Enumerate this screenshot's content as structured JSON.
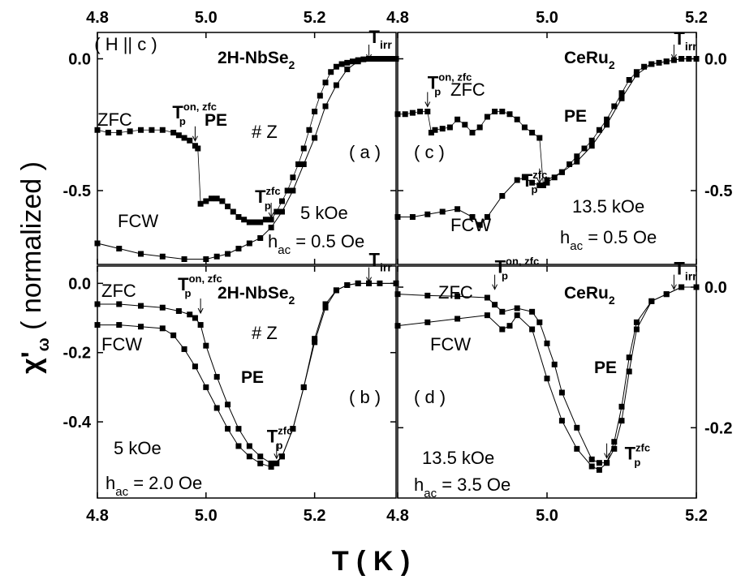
{
  "chart_data": [
    {
      "id": "a",
      "type": "scatter",
      "panel_label": "( a )",
      "sample": "2H-NbSe",
      "sample_sub": "2",
      "orientation": "( H || c )",
      "crystal": "# Z",
      "region": "PE",
      "field": "5 kOe",
      "hac_label": "h",
      "hac_sub": "ac",
      "hac_value": " = 0.5 Oe",
      "xlim": [
        4.8,
        5.35
      ],
      "ylim": [
        -0.78,
        0.1
      ],
      "xticks": [
        "4.8",
        "5.0",
        "5.2"
      ],
      "xtick_values": [
        4.8,
        5.0,
        5.2
      ],
      "yticks": [
        "0.0",
        "-0.5"
      ],
      "ytick_values": [
        0.0,
        -0.5
      ],
      "markers": [
        {
          "base": "T",
          "sup": "on, zfc",
          "sub": "p",
          "x": 4.98,
          "y": -0.33
        },
        {
          "base": "T",
          "sup": "zfc",
          "sub": "p",
          "x": 5.12,
          "y": -0.62
        },
        {
          "base": "T",
          "sub": "irr",
          "x": 5.3,
          "y": -0.02
        }
      ],
      "series": [
        {
          "name": "ZFC",
          "line": false,
          "x": [
            4.8,
            4.82,
            4.84,
            4.86,
            4.88,
            4.9,
            4.92,
            4.94,
            4.95,
            4.96,
            4.97,
            4.98,
            4.985,
            4.99,
            5.0,
            5.01,
            5.02,
            5.03,
            5.04,
            5.05,
            5.06,
            5.07,
            5.08,
            5.09,
            5.1,
            5.11,
            5.12,
            5.13,
            5.14,
            5.15,
            5.16,
            5.17,
            5.18,
            5.19,
            5.2,
            5.21,
            5.22,
            5.23,
            5.24,
            5.25,
            5.26,
            5.27,
            5.28,
            5.29,
            5.3,
            5.31,
            5.32,
            5.33,
            5.34,
            5.35
          ],
          "y": [
            -0.27,
            -0.28,
            -0.28,
            -0.275,
            -0.27,
            -0.27,
            -0.27,
            -0.28,
            -0.29,
            -0.3,
            -0.31,
            -0.33,
            -0.34,
            -0.55,
            -0.54,
            -0.53,
            -0.53,
            -0.54,
            -0.56,
            -0.58,
            -0.6,
            -0.61,
            -0.62,
            -0.62,
            -0.62,
            -0.61,
            -0.61,
            -0.58,
            -0.54,
            -0.5,
            -0.45,
            -0.4,
            -0.34,
            -0.27,
            -0.2,
            -0.14,
            -0.09,
            -0.05,
            -0.03,
            -0.02,
            -0.015,
            -0.01,
            -0.005,
            -0.002,
            0.0,
            0.0,
            0.0,
            0.0,
            0.0,
            0.0
          ]
        },
        {
          "name": "FCW",
          "line": true,
          "x": [
            4.8,
            4.84,
            4.88,
            4.92,
            4.96,
            5.0,
            5.02,
            5.04,
            5.06,
            5.08,
            5.1,
            5.12,
            5.14,
            5.16,
            5.18,
            5.2,
            5.22,
            5.24,
            5.26,
            5.28,
            5.3,
            5.32,
            5.35
          ],
          "y": [
            -0.7,
            -0.72,
            -0.74,
            -0.75,
            -0.76,
            -0.76,
            -0.75,
            -0.74,
            -0.72,
            -0.7,
            -0.68,
            -0.64,
            -0.58,
            -0.5,
            -0.4,
            -0.3,
            -0.18,
            -0.1,
            -0.04,
            -0.01,
            0.0,
            0.0,
            0.0
          ]
        }
      ]
    },
    {
      "id": "b",
      "type": "scatter",
      "panel_label": "( b )",
      "sample": "2H-NbSe",
      "sample_sub": "2",
      "crystal": "# Z",
      "region": "PE",
      "field": "5 kOe",
      "hac_label": "h",
      "hac_sub": "ac",
      "hac_value": " = 2.0 Oe",
      "xlim": [
        4.8,
        5.35
      ],
      "ylim": [
        -0.62,
        0.05
      ],
      "xticks": [
        "4.8",
        "5.0",
        "5.2"
      ],
      "xtick_values": [
        4.8,
        5.0,
        5.2
      ],
      "yticks": [
        "0.0",
        "-0.2",
        "-0.4"
      ],
      "ytick_values": [
        0.0,
        -0.2,
        -0.4
      ],
      "markers": [
        {
          "base": "T",
          "sup": "on, zfc",
          "sub": "p",
          "x": 4.99,
          "y": -0.1
        },
        {
          "base": "T",
          "sup": "zfc",
          "sub": "p",
          "x": 5.13,
          "y": -0.52
        },
        {
          "base": "T",
          "sub": "irr",
          "x": 5.3,
          "y": -0.01
        }
      ],
      "series": [
        {
          "name": "ZFC",
          "line": true,
          "x": [
            4.8,
            4.84,
            4.88,
            4.92,
            4.95,
            4.97,
            4.98,
            4.99,
            5.0,
            5.02,
            5.04,
            5.06,
            5.08,
            5.1,
            5.12,
            5.13,
            5.14,
            5.16,
            5.18,
            5.2,
            5.22,
            5.24,
            5.26,
            5.28,
            5.3,
            5.32,
            5.35
          ],
          "y": [
            -0.06,
            -0.06,
            -0.065,
            -0.07,
            -0.08,
            -0.09,
            -0.1,
            -0.12,
            -0.18,
            -0.27,
            -0.35,
            -0.42,
            -0.47,
            -0.5,
            -0.52,
            -0.52,
            -0.5,
            -0.42,
            -0.3,
            -0.16,
            -0.06,
            -0.02,
            -0.005,
            0.0,
            0.0,
            0.0,
            0.0
          ]
        },
        {
          "name": "FCW",
          "line": true,
          "x": [
            4.8,
            4.84,
            4.88,
            4.92,
            4.94,
            4.96,
            4.98,
            5.0,
            5.02,
            5.04,
            5.06,
            5.08,
            5.1,
            5.12,
            5.14,
            5.16,
            5.18,
            5.2,
            5.22,
            5.24,
            5.26,
            5.28,
            5.3,
            5.35
          ],
          "y": [
            -0.12,
            -0.12,
            -0.125,
            -0.13,
            -0.15,
            -0.19,
            -0.24,
            -0.3,
            -0.36,
            -0.42,
            -0.47,
            -0.5,
            -0.52,
            -0.53,
            -0.5,
            -0.42,
            -0.3,
            -0.17,
            -0.07,
            -0.02,
            -0.005,
            0.0,
            0.0,
            0.0
          ]
        }
      ]
    },
    {
      "id": "c",
      "type": "scatter",
      "panel_label": "( c )",
      "sample": "CeRu",
      "sample_sub": "2",
      "region": "PE",
      "field": "13.5 kOe",
      "hac_label": "h",
      "hac_sub": "ac",
      "hac_value": " = 0.5 Oe",
      "xlim": [
        4.8,
        5.2
      ],
      "ylim": [
        -0.78,
        0.1
      ],
      "xticks": [
        "4.8",
        "5.0",
        "5.2"
      ],
      "xtick_values": [
        4.8,
        5.0,
        5.2
      ],
      "yticks": [
        "0.0",
        "-0.5"
      ],
      "ytick_values": [
        0.0,
        -0.5
      ],
      "markers": [
        {
          "base": "T",
          "sup": "on, zfc",
          "sub": "p",
          "x": 4.84,
          "y": -0.2
        },
        {
          "base": "T",
          "sup": "zfc",
          "sub": "p",
          "x": 4.99,
          "y": -0.49
        },
        {
          "base": "T",
          "sub": "irr",
          "x": 5.17,
          "y": -0.02
        }
      ],
      "series": [
        {
          "name": "ZFC",
          "line": false,
          "x": [
            4.8,
            4.81,
            4.82,
            4.83,
            4.84,
            4.845,
            4.85,
            4.86,
            4.87,
            4.88,
            4.89,
            4.9,
            4.91,
            4.92,
            4.93,
            4.94,
            4.95,
            4.96,
            4.97,
            4.98,
            4.99,
            4.995,
            5.0,
            5.01,
            5.02,
            5.03,
            5.04,
            5.05,
            5.06,
            5.07,
            5.08,
            5.09,
            5.1,
            5.11,
            5.12,
            5.13,
            5.14,
            5.15,
            5.16,
            5.17,
            5.18,
            5.19,
            5.2
          ],
          "y": [
            -0.21,
            -0.21,
            -0.205,
            -0.2,
            -0.2,
            -0.28,
            -0.27,
            -0.265,
            -0.26,
            -0.23,
            -0.25,
            -0.28,
            -0.26,
            -0.22,
            -0.2,
            -0.2,
            -0.21,
            -0.23,
            -0.26,
            -0.28,
            -0.3,
            -0.48,
            -0.47,
            -0.45,
            -0.43,
            -0.4,
            -0.37,
            -0.34,
            -0.31,
            -0.27,
            -0.23,
            -0.18,
            -0.13,
            -0.08,
            -0.05,
            -0.03,
            -0.02,
            -0.015,
            -0.01,
            -0.005,
            0.0,
            0.0,
            0.0
          ]
        },
        {
          "name": "FCW",
          "line": true,
          "x": [
            4.8,
            4.82,
            4.84,
            4.86,
            4.88,
            4.9,
            4.91,
            4.92,
            4.94,
            4.96,
            4.97,
            4.98,
            4.99,
            5.0,
            5.02,
            5.04,
            5.06,
            5.08,
            5.1,
            5.12,
            5.14,
            5.16,
            5.18,
            5.2
          ],
          "y": [
            -0.6,
            -0.6,
            -0.59,
            -0.58,
            -0.57,
            -0.6,
            -0.63,
            -0.6,
            -0.52,
            -0.46,
            -0.45,
            -0.47,
            -0.48,
            -0.46,
            -0.43,
            -0.39,
            -0.33,
            -0.25,
            -0.15,
            -0.06,
            -0.02,
            -0.01,
            0.0,
            0.0
          ]
        }
      ]
    },
    {
      "id": "d",
      "type": "scatter",
      "panel_label": "( d )",
      "sample": "CeRu",
      "sample_sub": "2",
      "region": "PE",
      "field": "13.5 kOe",
      "hac_label": "h",
      "hac_sub": "ac",
      "hac_value": " = 3.5 Oe",
      "xlim": [
        4.8,
        5.2
      ],
      "ylim": [
        -0.3,
        0.03
      ],
      "xticks": [
        "4.8",
        "5.0",
        "5.2"
      ],
      "xtick_values": [
        4.8,
        5.0,
        5.2
      ],
      "yticks": [
        "0.0",
        "-0.2"
      ],
      "ytick_values": [
        0.0,
        -0.2
      ],
      "markers": [
        {
          "base": "T",
          "sup": "on, zfc",
          "sub": "p",
          "x": 4.93,
          "y": -0.01
        },
        {
          "base": "T",
          "sup": "zfc",
          "sub": "p",
          "x": 5.08,
          "y": -0.25
        },
        {
          "base": "T",
          "sub": "irr",
          "x": 5.17,
          "y": -0.01
        }
      ],
      "series": [
        {
          "name": "ZFC",
          "line": true,
          "x": [
            4.8,
            4.84,
            4.88,
            4.92,
            4.93,
            4.94,
            4.96,
            4.98,
            4.99,
            5.0,
            5.01,
            5.02,
            5.04,
            5.06,
            5.07,
            5.08,
            5.09,
            5.1,
            5.11,
            5.12,
            5.14,
            5.16,
            5.18,
            5.2
          ],
          "y": [
            -0.01,
            -0.012,
            -0.013,
            -0.015,
            -0.025,
            -0.035,
            -0.03,
            -0.035,
            -0.05,
            -0.08,
            -0.11,
            -0.15,
            -0.2,
            -0.245,
            -0.25,
            -0.25,
            -0.23,
            -0.19,
            -0.12,
            -0.06,
            -0.02,
            -0.01,
            0.0,
            0.0
          ]
        },
        {
          "name": "FCW",
          "line": true,
          "x": [
            4.8,
            4.84,
            4.88,
            4.92,
            4.94,
            4.95,
            4.96,
            4.98,
            5.0,
            5.02,
            5.04,
            5.06,
            5.07,
            5.08,
            5.09,
            5.1,
            5.11,
            5.12,
            5.14,
            5.16,
            5.18,
            5.2
          ],
          "y": [
            -0.055,
            -0.05,
            -0.045,
            -0.04,
            -0.06,
            -0.055,
            -0.04,
            -0.06,
            -0.13,
            -0.19,
            -0.23,
            -0.255,
            -0.26,
            -0.25,
            -0.22,
            -0.17,
            -0.1,
            -0.05,
            -0.02,
            -0.01,
            0.0,
            0.0
          ]
        }
      ]
    }
  ],
  "axes": {
    "xlabel": "T ( K )",
    "ylabel_main": "χ",
    "ylabel_prime": "'",
    "ylabel_sub": "ω",
    "ylabel_rest": " ( normalized )"
  }
}
